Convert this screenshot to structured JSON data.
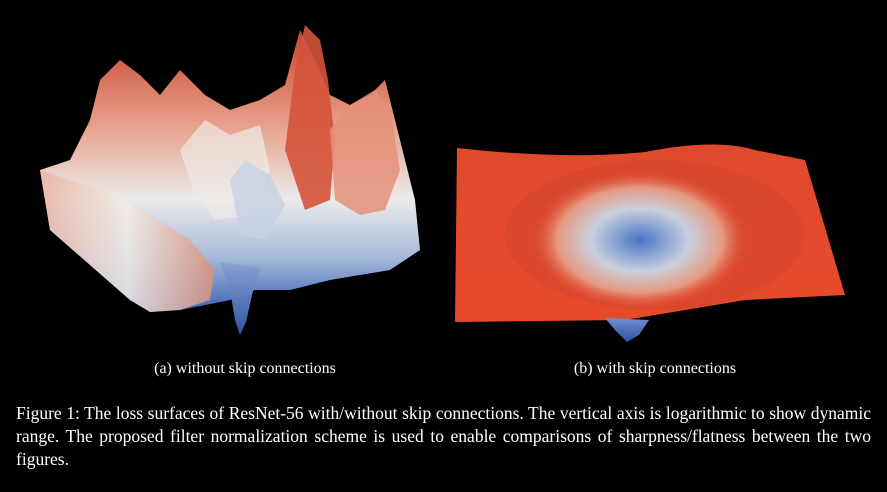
{
  "subfigures": [
    {
      "id": "a",
      "caption": "(a)  without skip connections"
    },
    {
      "id": "b",
      "caption": "(b)  with skip connections"
    }
  ],
  "figure_caption": "Figure 1:  The loss surfaces of ResNet-56 with/without skip connections.  The vertical axis is logarithmic to show dynamic range.  The proposed filter normalization scheme is used to enable comparisons of sharpness/flatness between the two figures.",
  "colors": {
    "background": "#000000",
    "surface_high": "#d9432a",
    "surface_mid": "#e8e6e4",
    "surface_low": "#3b63b8"
  }
}
